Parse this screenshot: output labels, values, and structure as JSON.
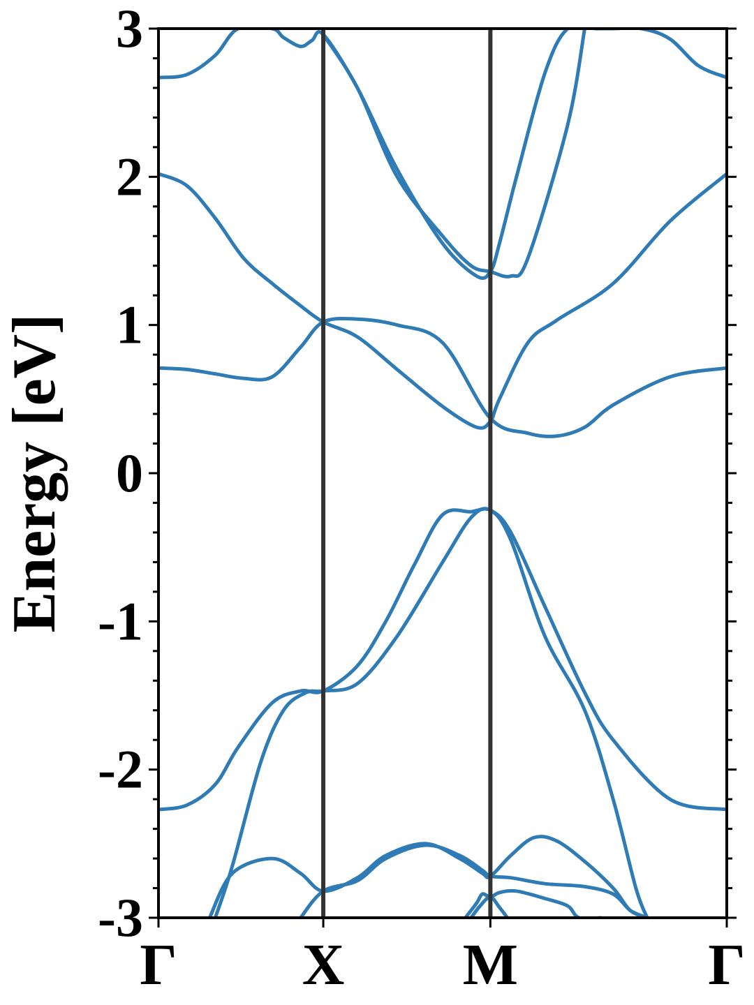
{
  "chart_data": {
    "type": "line",
    "title": "",
    "xlabel": "",
    "ylabel": "Energy [eV]",
    "ylim": [
      -3,
      3
    ],
    "yticks": [
      3,
      2,
      1,
      0,
      -1,
      -2,
      -3
    ],
    "ytick_labels": [
      "3",
      "2",
      "1",
      "0",
      "-1",
      "-2",
      "-3"
    ],
    "high_symmetry_points": [
      {
        "label": "Γ",
        "x": 0.0
      },
      {
        "label": "X",
        "x": 0.29
      },
      {
        "label": "M",
        "x": 0.584
      },
      {
        "label": "Γ",
        "x": 1.0
      }
    ],
    "grid": false,
    "line_color": "#2e7bb5",
    "vline_color": "#333333",
    "series": [
      {
        "x": [
          0,
          0.05,
          0.1,
          0.15,
          0.2,
          0.25,
          0.29,
          0.35,
          0.42,
          0.5,
          0.584,
          0.65,
          0.7,
          0.75,
          0.8,
          0.9,
          1.0
        ],
        "y": [
          0.71,
          0.7,
          0.67,
          0.64,
          0.65,
          0.85,
          1.02,
          1.04,
          1.0,
          0.88,
          0.37,
          0.27,
          0.25,
          0.31,
          0.46,
          0.65,
          0.71
        ]
      },
      {
        "x": [
          0,
          0.05,
          0.1,
          0.15,
          0.2,
          0.25,
          0.29,
          0.35,
          0.42,
          0.5,
          0.56,
          0.584,
          0.6,
          0.65,
          0.7,
          0.8,
          0.9,
          1.0
        ],
        "y": [
          2.02,
          1.94,
          1.72,
          1.45,
          1.28,
          1.13,
          1.02,
          0.92,
          0.7,
          0.45,
          0.31,
          0.35,
          0.5,
          0.88,
          1.03,
          1.28,
          1.7,
          2.02
        ]
      },
      {
        "x": [
          0,
          0.05,
          0.1,
          0.14,
          0.2,
          0.22,
          0.25,
          0.27,
          0.29,
          0.35,
          0.42,
          0.5,
          0.56,
          0.584,
          0.6,
          0.63,
          0.68,
          0.72,
          0.77,
          0.8,
          0.85,
          0.9,
          0.95,
          1.0
        ],
        "y": [
          2.67,
          2.69,
          2.82,
          3.0,
          3.0,
          2.94,
          2.88,
          2.92,
          2.96,
          2.6,
          2.05,
          1.55,
          1.33,
          1.36,
          1.55,
          2.0,
          2.7,
          3.0,
          3.0,
          3.0,
          3.0,
          2.93,
          2.75,
          2.67
        ]
      },
      {
        "x": [
          0.29,
          0.35,
          0.42,
          0.5,
          0.55,
          0.584,
          0.62,
          0.65,
          0.72,
          0.75
        ],
        "y": [
          2.96,
          2.6,
          2.0,
          1.6,
          1.4,
          1.36,
          1.33,
          1.45,
          2.35,
          3.0
        ]
      },
      {
        "x": [
          0,
          0.05,
          0.1,
          0.14,
          0.2,
          0.25,
          0.29,
          0.35,
          0.4,
          0.45,
          0.5,
          0.55,
          0.584,
          0.62,
          0.68,
          0.75,
          0.8,
          0.9,
          1.0
        ],
        "y": [
          -2.27,
          -2.24,
          -2.1,
          -1.85,
          -1.55,
          -1.47,
          -1.47,
          -1.3,
          -1.0,
          -0.62,
          -0.28,
          -0.26,
          -0.25,
          -0.4,
          -0.9,
          -1.48,
          -1.8,
          -2.2,
          -2.27
        ]
      },
      {
        "x": [
          0.1,
          0.13,
          0.18,
          0.22,
          0.26,
          0.29,
          0.35,
          0.42,
          0.5,
          0.55,
          0.584,
          0.62,
          0.68,
          0.75,
          0.8,
          0.84,
          0.86
        ],
        "y": [
          -3.0,
          -2.65,
          -1.95,
          -1.6,
          -1.48,
          -1.47,
          -1.42,
          -1.1,
          -0.6,
          -0.3,
          -0.25,
          -0.45,
          -1.1,
          -1.6,
          -2.2,
          -2.8,
          -3.0
        ]
      },
      {
        "x": [
          0.09,
          0.13,
          0.2,
          0.25,
          0.29,
          0.35,
          0.4,
          0.47,
          0.53,
          0.57,
          0.584,
          0.62,
          0.66,
          0.7,
          0.75,
          0.8,
          0.83,
          0.86
        ],
        "y": [
          -3.0,
          -2.7,
          -2.6,
          -2.7,
          -2.82,
          -2.73,
          -2.58,
          -2.5,
          -2.6,
          -2.7,
          -2.72,
          -2.58,
          -2.46,
          -2.48,
          -2.62,
          -2.8,
          -2.95,
          -3.0
        ]
      },
      {
        "x": [
          0.25,
          0.29,
          0.35,
          0.4,
          0.47,
          0.53,
          0.57,
          0.584,
          0.62,
          0.68,
          0.75,
          0.8,
          0.83,
          0.86
        ],
        "y": [
          -3.0,
          -2.82,
          -2.75,
          -2.6,
          -2.51,
          -2.58,
          -2.68,
          -2.72,
          -2.73,
          -2.77,
          -2.79,
          -2.84,
          -2.95,
          -3.0
        ]
      },
      {
        "x": [
          0.54,
          0.56,
          0.57,
          0.584,
          0.6,
          0.63,
          0.68,
          0.72,
          0.74,
          0.78
        ],
        "y": [
          -3.0,
          -2.9,
          -2.84,
          -2.86,
          -2.83,
          -2.82,
          -2.87,
          -2.92,
          -3.0,
          -3.0
        ]
      },
      {
        "x": [
          0.55,
          0.566,
          0.584,
          0.6,
          0.614
        ],
        "y": [
          -3.0,
          -2.92,
          -2.86,
          -2.93,
          -3.0
        ]
      }
    ]
  }
}
